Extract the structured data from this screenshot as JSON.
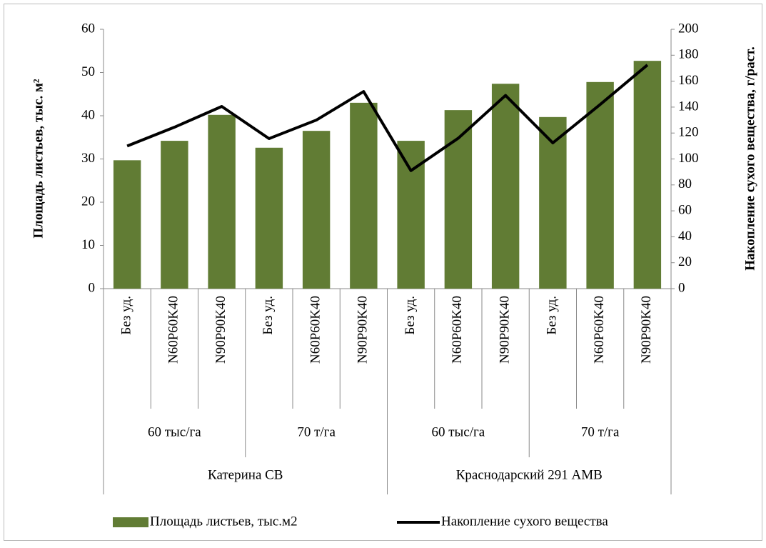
{
  "chart_data": {
    "type": "bar+line",
    "categories": [
      "Без уд.",
      "N60P60K40",
      "N90P90K40",
      "Без уд.",
      "N60P60K40",
      "N90P90K40",
      "Без уд.",
      "N60P60K40",
      "N90P90K40",
      "Без уд.",
      "N60P60K40",
      "N90P90K40"
    ],
    "category_levels": [
      [
        "60 тыс/га",
        "70 т/га",
        "60 тыс/га",
        "70 т/га"
      ],
      [
        "Катерина СВ",
        "Краснодарский 291 АМВ"
      ]
    ],
    "ylabel": "Площадь листьев, тыс. м²",
    "y2label": "Накопление сухого вещества,  г/раст.",
    "ylim": [
      0,
      60
    ],
    "yticks": [
      0,
      10,
      20,
      30,
      40,
      50,
      60
    ],
    "y2lim": [
      0,
      200
    ],
    "y2ticks": [
      0,
      20,
      40,
      60,
      80,
      100,
      120,
      140,
      160,
      180,
      200
    ],
    "series": [
      {
        "name": "Площадь листьев, тыс.м2",
        "type": "bar",
        "color": "#617c34",
        "values": [
          29.7,
          34.2,
          40.2,
          32.6,
          36.5,
          43.0,
          34.2,
          41.3,
          47.4,
          39.7,
          47.8,
          52.7
        ]
      },
      {
        "name": "Накопление сухого вещества",
        "type": "line",
        "axis": "y2",
        "color": "#000000",
        "values": [
          110,
          124.5,
          140.5,
          115.7,
          130,
          152,
          91,
          116,
          149,
          112.4,
          142,
          172.5
        ]
      }
    ],
    "legend": "bottom"
  }
}
